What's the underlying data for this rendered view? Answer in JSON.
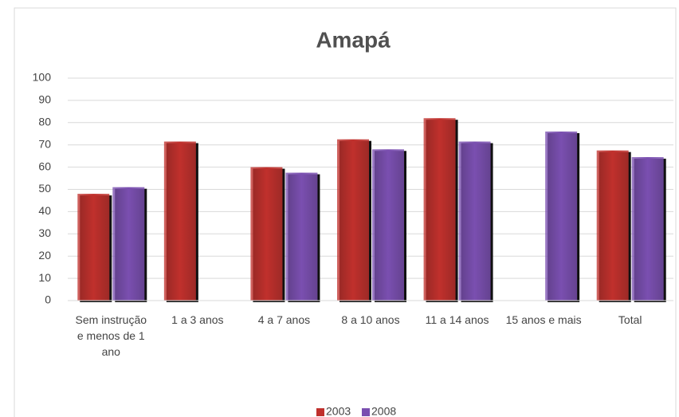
{
  "chart_data": {
    "type": "bar",
    "title": "Amapá",
    "categories": [
      "Sem instrução e menos de 1 ano",
      "1 a 3 anos",
      "4 a 7 anos",
      "8 a 10 anos",
      "11 a 14 anos",
      "15 anos e mais",
      "Total"
    ],
    "series": [
      {
        "name": "2003",
        "color": "#c0302c",
        "values": [
          48,
          71.5,
          60,
          72.5,
          82,
          null,
          67.5
        ]
      },
      {
        "name": "2008",
        "color": "#7a4fb0",
        "values": [
          51,
          null,
          57.5,
          68,
          71.5,
          76,
          64.5
        ]
      }
    ],
    "ylim": [
      0,
      100
    ],
    "yticks": [
      0,
      10,
      20,
      30,
      40,
      50,
      60,
      70,
      80,
      90,
      100
    ],
    "grid": true,
    "legend": "bottom"
  }
}
